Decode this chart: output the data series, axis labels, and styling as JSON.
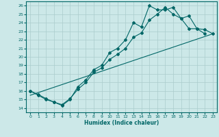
{
  "xlabel": "Humidex (Indice chaleur)",
  "xlim": [
    -0.5,
    23.5
  ],
  "ylim": [
    13.5,
    26.5
  ],
  "xticks": [
    0,
    1,
    2,
    3,
    4,
    5,
    6,
    7,
    8,
    9,
    10,
    11,
    12,
    13,
    14,
    15,
    16,
    17,
    18,
    19,
    20,
    21,
    22,
    23
  ],
  "yticks": [
    14,
    15,
    16,
    17,
    18,
    19,
    20,
    21,
    22,
    23,
    24,
    25,
    26
  ],
  "bg_color": "#cce8e8",
  "line_color": "#006666",
  "grid_color": "#aacccc",
  "line1_x": [
    0,
    1,
    2,
    3,
    4,
    5,
    6,
    7,
    8,
    9,
    10,
    11,
    12,
    13,
    14,
    15,
    16,
    17,
    18,
    19,
    20,
    21,
    22
  ],
  "line1_y": [
    16.0,
    15.5,
    15.0,
    14.7,
    14.3,
    15.0,
    16.5,
    17.3,
    18.5,
    19.0,
    20.5,
    21.0,
    22.0,
    24.0,
    23.5,
    26.0,
    25.5,
    25.5,
    25.8,
    24.5,
    23.3,
    23.3,
    22.7
  ],
  "line2_x": [
    0,
    1,
    2,
    3,
    4,
    5,
    6,
    7,
    8,
    9,
    10,
    11,
    12,
    13,
    14,
    15,
    16,
    17,
    18,
    19,
    20,
    21,
    22,
    23
  ],
  "line2_y": [
    16.0,
    15.6,
    15.1,
    14.7,
    14.4,
    15.1,
    16.2,
    17.0,
    18.2,
    18.7,
    19.7,
    20.3,
    21.0,
    22.3,
    22.8,
    24.3,
    25.0,
    25.8,
    25.0,
    24.5,
    24.8,
    23.3,
    23.2,
    22.7
  ],
  "line3_x": [
    0,
    23
  ],
  "line3_y": [
    15.5,
    22.7
  ]
}
